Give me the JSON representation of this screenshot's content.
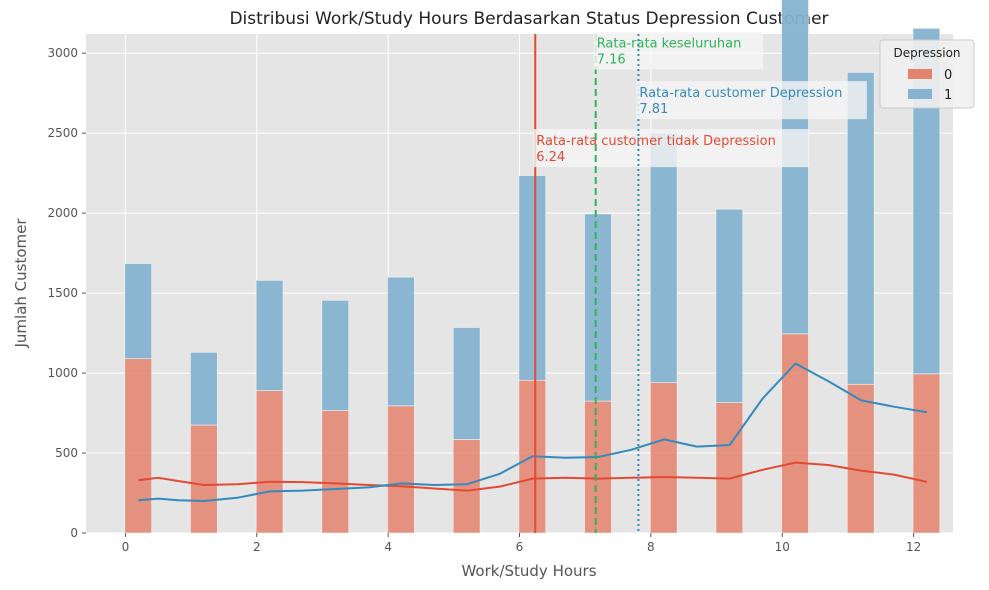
{
  "chart_data": {
    "type": "bar",
    "title": "Distribusi Work/Study Hours Berdasarkan Status Depression Customer",
    "xlabel": "Work/Study Hours",
    "ylabel": "Jumlah Customer",
    "xlim": [
      -0.6,
      12.6
    ],
    "ylim": [
      0,
      3120
    ],
    "x_ticks": [
      0,
      2,
      4,
      6,
      8,
      10,
      12
    ],
    "y_ticks": [
      0,
      500,
      1000,
      1500,
      2000,
      2500,
      3000
    ],
    "grid": true,
    "hours": [
      0,
      1,
      2,
      3,
      4,
      5,
      6,
      7,
      8,
      9,
      10,
      11,
      12
    ],
    "series": [
      {
        "name": "0",
        "color": "#e5826e",
        "kde_color": "#e24a33",
        "values": [
          1090,
          675,
          890,
          765,
          795,
          585,
          955,
          825,
          940,
          815,
          1245,
          930,
          995
        ]
      },
      {
        "name": "1",
        "color": "#86b3d1",
        "kde_color": "#348abd",
        "values": [
          595,
          455,
          690,
          690,
          805,
          700,
          1280,
          1170,
          1560,
          1210,
          2975,
          1950,
          2160
        ]
      }
    ],
    "kde": [
      {
        "series": "0",
        "x": [
          0,
          0.3,
          0.6,
          1,
          1.5,
          2,
          2.5,
          3,
          3.5,
          4,
          4.5,
          5,
          5.5,
          6,
          6.5,
          7,
          7.5,
          8,
          8.5,
          9,
          9.5,
          10,
          10.5,
          11,
          11.5,
          12
        ],
        "y": [
          330,
          345,
          325,
          300,
          305,
          320,
          318,
          310,
          300,
          292,
          278,
          265,
          290,
          340,
          345,
          340,
          345,
          350,
          345,
          340,
          395,
          440,
          425,
          390,
          365,
          320
        ]
      },
      {
        "series": "1",
        "x": [
          0,
          0.3,
          0.6,
          1,
          1.5,
          2,
          2.5,
          3,
          3.5,
          4,
          4.5,
          5,
          5.5,
          6,
          6.5,
          7,
          7.5,
          8,
          8.5,
          9,
          9.5,
          10,
          10.5,
          11,
          11.5,
          12
        ],
        "y": [
          205,
          215,
          205,
          200,
          220,
          260,
          265,
          275,
          285,
          310,
          300,
          305,
          370,
          480,
          470,
          475,
          520,
          585,
          540,
          550,
          840,
          1060,
          950,
          830,
          790,
          755
        ]
      }
    ],
    "mean_lines": [
      {
        "value": 6.24,
        "label": "Rata-rata customer tidak Depression",
        "value_label": "6.24",
        "color": "#e24a33",
        "style": "solid",
        "label_y": 2200
      },
      {
        "value": 7.16,
        "label": "Rata-rata keseluruhan",
        "value_label": "7.16",
        "color": "#2fb35a",
        "style": "dashed",
        "label_y": 2810
      },
      {
        "value": 7.81,
        "label": "Rata-rata customer Depression",
        "value_label": "7.81",
        "color": "#348abd",
        "style": "dotted",
        "label_y": 2500
      }
    ],
    "legend": {
      "title": "Depression",
      "position": "top-right"
    }
  }
}
